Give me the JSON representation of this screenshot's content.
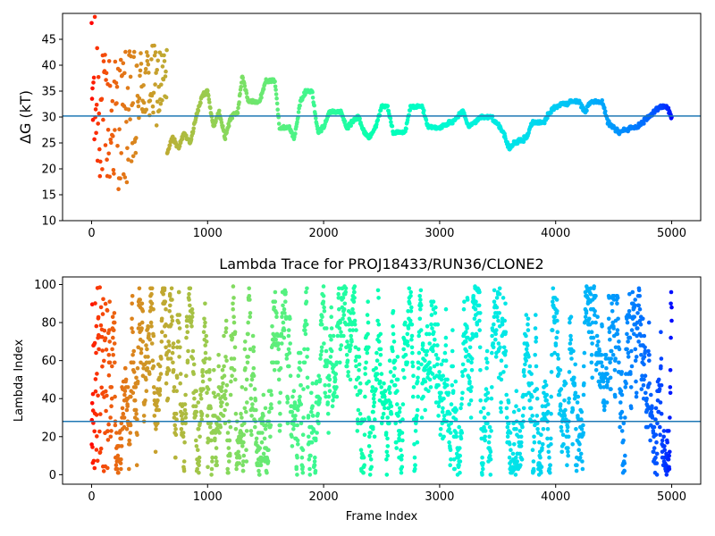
{
  "chart_data": [
    {
      "type": "scatter",
      "title": "",
      "xlabel": "",
      "ylabel": "ΔG (kT)",
      "xlim": [
        -250,
        5250
      ],
      "ylim": [
        10,
        50
      ],
      "xticks": [
        0,
        1000,
        2000,
        3000,
        4000,
        5000
      ],
      "xtick_labels": [
        "0",
        "1000",
        "2000",
        "3000",
        "4000",
        "5000"
      ],
      "yticks": [
        10,
        15,
        20,
        25,
        30,
        35,
        40,
        45
      ],
      "ytick_labels": [
        "10",
        "15",
        "20",
        "25",
        "30",
        "35",
        "40",
        "45"
      ],
      "colormap": "rainbow (frame 0 red → frame 5000 violet)",
      "hline": {
        "y": 30.2,
        "color": "#1f77b4"
      },
      "anchors": [
        [
          0,
          38
        ],
        [
          20,
          30
        ],
        [
          40,
          36
        ],
        [
          60,
          28
        ],
        [
          80,
          32
        ],
        [
          100,
          34
        ],
        [
          120,
          30
        ],
        [
          150,
          33
        ],
        [
          200,
          29
        ],
        [
          250,
          31
        ],
        [
          300,
          27
        ],
        [
          350,
          30
        ],
        [
          400,
          32
        ],
        [
          450,
          35
        ],
        [
          500,
          37
        ],
        [
          560,
          38
        ],
        [
          600,
          34
        ],
        [
          650,
          23
        ],
        [
          700,
          26
        ],
        [
          750,
          24
        ],
        [
          800,
          27
        ],
        [
          850,
          25
        ],
        [
          900,
          30
        ],
        [
          950,
          34
        ],
        [
          1000,
          35
        ],
        [
          1050,
          28
        ],
        [
          1100,
          31
        ],
        [
          1150,
          26
        ],
        [
          1200,
          30
        ],
        [
          1260,
          31
        ],
        [
          1300,
          38
        ],
        [
          1350,
          33
        ],
        [
          1450,
          33
        ],
        [
          1500,
          37
        ],
        [
          1580,
          37
        ],
        [
          1620,
          28
        ],
        [
          1700,
          28
        ],
        [
          1750,
          26
        ],
        [
          1800,
          33
        ],
        [
          1850,
          35
        ],
        [
          1900,
          35
        ],
        [
          1950,
          27
        ],
        [
          2000,
          28
        ],
        [
          2050,
          31
        ],
        [
          2150,
          31
        ],
        [
          2200,
          28
        ],
        [
          2300,
          30
        ],
        [
          2350,
          27
        ],
        [
          2400,
          26
        ],
        [
          2450,
          28
        ],
        [
          2500,
          32
        ],
        [
          2550,
          32
        ],
        [
          2600,
          27
        ],
        [
          2700,
          27
        ],
        [
          2750,
          32
        ],
        [
          2850,
          32
        ],
        [
          2900,
          28
        ],
        [
          3000,
          28
        ],
        [
          3100,
          29
        ],
        [
          3200,
          31
        ],
        [
          3250,
          28
        ],
        [
          3350,
          30
        ],
        [
          3450,
          30
        ],
        [
          3550,
          27
        ],
        [
          3600,
          24
        ],
        [
          3650,
          25
        ],
        [
          3750,
          26
        ],
        [
          3800,
          29
        ],
        [
          3900,
          29
        ],
        [
          3950,
          31
        ],
        [
          4000,
          32
        ],
        [
          4150,
          33
        ],
        [
          4200,
          33
        ],
        [
          4250,
          31
        ],
        [
          4300,
          33
        ],
        [
          4400,
          33
        ],
        [
          4450,
          29
        ],
        [
          4500,
          28
        ],
        [
          4550,
          27
        ],
        [
          4650,
          28
        ],
        [
          4700,
          28
        ],
        [
          4800,
          30
        ],
        [
          4850,
          31
        ],
        [
          4900,
          32
        ],
        [
          4950,
          32
        ],
        [
          4980,
          31
        ],
        [
          5000,
          30
        ]
      ],
      "early_spread": [
        {
          "x_max": 80,
          "y_range": [
            17,
            50
          ]
        },
        {
          "x_max": 400,
          "y_range": [
            16,
            43
          ]
        },
        {
          "x_max": 650,
          "y_range": [
            28,
            44
          ]
        }
      ]
    },
    {
      "type": "scatter",
      "title": "Lambda Trace for PROJ18433/RUN36/CLONE2",
      "xlabel": "Frame Index",
      "ylabel": "Lambda Index",
      "xlim": [
        -250,
        5250
      ],
      "ylim": [
        -5,
        104
      ],
      "xticks": [
        0,
        1000,
        2000,
        3000,
        4000,
        5000
      ],
      "xtick_labels": [
        "0",
        "1000",
        "2000",
        "3000",
        "4000",
        "5000"
      ],
      "yticks": [
        0,
        20,
        40,
        60,
        80,
        100
      ],
      "ytick_labels": [
        "0",
        "20",
        "40",
        "60",
        "80",
        "100"
      ],
      "colormap": "rainbow (frame 0 red → frame 5000 violet)",
      "hline": {
        "y": 28,
        "color": "#1f77b4"
      },
      "n_points": 5000,
      "y_range": [
        0,
        99
      ]
    }
  ]
}
